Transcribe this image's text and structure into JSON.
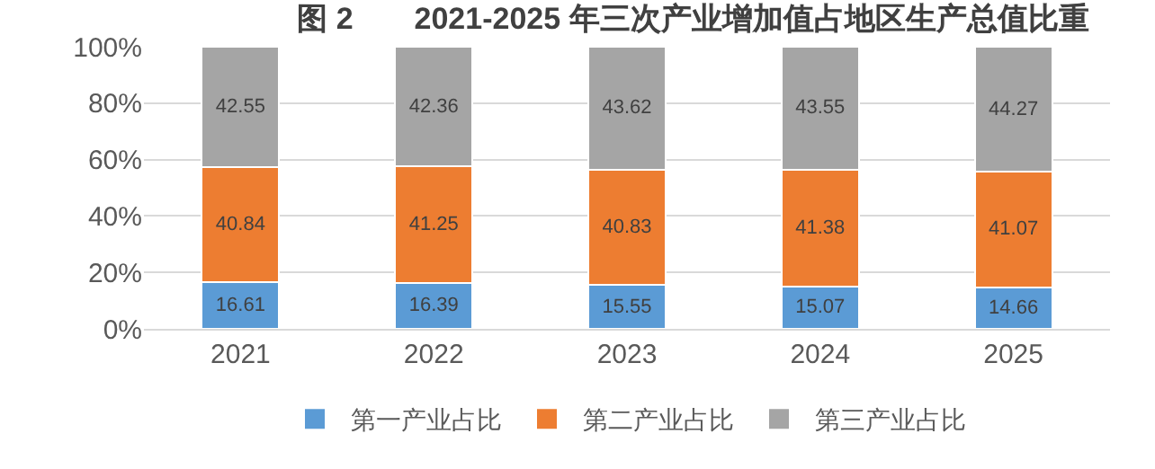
{
  "chart_data": {
    "type": "bar",
    "stacked": true,
    "title": "图 2　　2021-2025 年三次产业增加值占地区生产总值比重",
    "categories": [
      "2021",
      "2022",
      "2023",
      "2024",
      "2025"
    ],
    "series": [
      {
        "name": "第一产业占比",
        "color": "#5b9bd5",
        "values": [
          16.61,
          16.39,
          15.55,
          15.07,
          14.66
        ]
      },
      {
        "name": "第二产业占比",
        "color": "#ed7d31",
        "values": [
          40.84,
          41.25,
          40.83,
          41.38,
          41.07
        ]
      },
      {
        "name": "第三产业占比",
        "color": "#a5a5a5",
        "values": [
          42.55,
          42.36,
          43.62,
          43.55,
          44.27
        ]
      }
    ],
    "ylim": [
      0,
      100
    ],
    "yticks": [
      {
        "value": 0,
        "label": "0%"
      },
      {
        "value": 20,
        "label": "20%"
      },
      {
        "value": 40,
        "label": "40%"
      },
      {
        "value": 60,
        "label": "60%"
      },
      {
        "value": 80,
        "label": "80%"
      },
      {
        "value": 100,
        "label": "100%"
      }
    ],
    "grid": "y",
    "legend": "bottom",
    "data_labels": true
  }
}
